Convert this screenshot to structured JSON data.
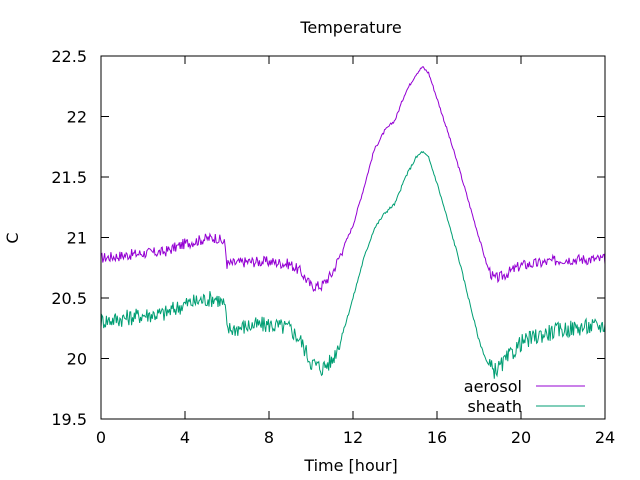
{
  "chart_data": {
    "type": "line",
    "title": "Temperature",
    "xlabel": "Time [hour]",
    "ylabel": "C",
    "xlim": [
      0,
      24
    ],
    "ylim": [
      19.5,
      22.5
    ],
    "xticks": [
      "0",
      "4",
      "8",
      "12",
      "16",
      "20",
      "24"
    ],
    "yticks": [
      "19.5",
      "20",
      "20.5",
      "21",
      "21.5",
      "22",
      "22.5"
    ],
    "grid": false,
    "legend_position": "bottom-right",
    "series": [
      {
        "name": "aerosol",
        "color": "#9400d3",
        "x": [
          0,
          1,
          2,
          3,
          4,
          5,
          5.5,
          5.9,
          6,
          6.5,
          7,
          8,
          9,
          9.5,
          10,
          10.5,
          11,
          11.5,
          12,
          12.5,
          13,
          13.5,
          14,
          14.5,
          15,
          15.3,
          15.6,
          16,
          16.5,
          17,
          17.5,
          18,
          18.4,
          18.7,
          19,
          19.5,
          20,
          21,
          22,
          23,
          24
        ],
        "y": [
          20.83,
          20.85,
          20.87,
          20.88,
          20.95,
          20.99,
          21.0,
          20.95,
          20.78,
          20.79,
          20.8,
          20.8,
          20.78,
          20.72,
          20.6,
          20.6,
          20.7,
          20.9,
          21.1,
          21.4,
          21.72,
          21.88,
          21.97,
          22.2,
          22.35,
          22.41,
          22.36,
          22.15,
          21.88,
          21.6,
          21.3,
          21.0,
          20.76,
          20.66,
          20.67,
          20.72,
          20.77,
          20.79,
          20.82,
          20.82,
          20.82
        ]
      },
      {
        "name": "sheath",
        "color": "#009e73",
        "x": [
          0,
          1,
          2,
          3,
          4,
          5,
          5.5,
          5.9,
          6,
          6.5,
          7,
          8,
          9,
          9.5,
          10,
          10.5,
          11,
          11.5,
          12,
          12.5,
          13,
          13.5,
          14,
          14.5,
          15,
          15.3,
          15.6,
          16,
          16.5,
          17,
          17.5,
          18,
          18.4,
          18.7,
          19,
          19.5,
          20,
          21,
          22,
          23,
          24
        ],
        "y": [
          20.31,
          20.33,
          20.36,
          20.37,
          20.45,
          20.49,
          20.5,
          20.44,
          20.24,
          20.25,
          20.27,
          20.28,
          20.25,
          20.15,
          19.97,
          19.92,
          19.98,
          20.2,
          20.5,
          20.82,
          21.07,
          21.2,
          21.28,
          21.5,
          21.66,
          21.71,
          21.66,
          21.45,
          21.15,
          20.85,
          20.5,
          20.15,
          19.96,
          19.9,
          19.93,
          20.03,
          20.13,
          20.2,
          20.24,
          20.26,
          20.27
        ]
      }
    ]
  }
}
